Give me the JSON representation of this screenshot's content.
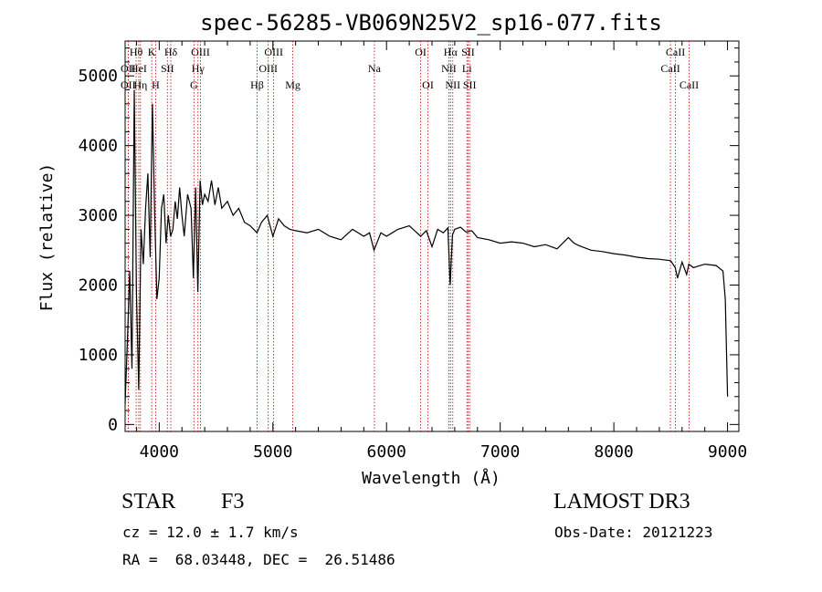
{
  "chart_data": {
    "type": "line",
    "title": "spec-56285-VB069N25V2_sp16-077.fits",
    "xlabel": "Wavelength (Å)",
    "ylabel": "Flux (relative)",
    "xlim": [
      3700,
      9100
    ],
    "ylim": [
      -100,
      5500
    ],
    "xticks": [
      4000,
      5000,
      6000,
      7000,
      8000,
      9000
    ],
    "yticks": [
      0,
      1000,
      2000,
      3000,
      4000,
      5000
    ],
    "series": [
      {
        "name": "flux",
        "x": [
          3700,
          3720,
          3740,
          3760,
          3780,
          3800,
          3820,
          3840,
          3860,
          3880,
          3900,
          3920,
          3940,
          3960,
          3980,
          4000,
          4020,
          4040,
          4060,
          4080,
          4100,
          4120,
          4140,
          4160,
          4180,
          4200,
          4220,
          4250,
          4280,
          4300,
          4320,
          4340,
          4360,
          4380,
          4400,
          4430,
          4460,
          4490,
          4520,
          4550,
          4600,
          4650,
          4700,
          4750,
          4800,
          4860,
          4900,
          4950,
          5000,
          5050,
          5100,
          5150,
          5200,
          5300,
          5400,
          5500,
          5600,
          5700,
          5800,
          5850,
          5890,
          5950,
          6000,
          6100,
          6200,
          6300,
          6350,
          6400,
          6450,
          6500,
          6540,
          6560,
          6580,
          6600,
          6650,
          6700,
          6750,
          6800,
          6900,
          7000,
          7100,
          7200,
          7300,
          7400,
          7500,
          7600,
          7650,
          7700,
          7800,
          7900,
          8000,
          8100,
          8200,
          8300,
          8400,
          8500,
          8540,
          8560,
          8600,
          8640,
          8660,
          8700,
          8800,
          8900,
          8960,
          8980,
          9000
        ],
        "y": [
          300,
          1200,
          2200,
          800,
          4800,
          1900,
          500,
          2800,
          2300,
          3100,
          3600,
          2400,
          4600,
          3000,
          1800,
          2100,
          3100,
          3300,
          2600,
          3000,
          2700,
          2800,
          3200,
          2950,
          3400,
          3000,
          2700,
          3300,
          3100,
          2100,
          3400,
          1900,
          3500,
          3150,
          3300,
          3200,
          3500,
          3150,
          3400,
          3100,
          3200,
          3000,
          3100,
          2900,
          2850,
          2750,
          2900,
          3000,
          2700,
          2950,
          2850,
          2800,
          2780,
          2750,
          2800,
          2700,
          2650,
          2800,
          2700,
          2750,
          2500,
          2750,
          2700,
          2800,
          2850,
          2700,
          2780,
          2550,
          2800,
          2750,
          2820,
          2000,
          2720,
          2800,
          2830,
          2760,
          2780,
          2680,
          2650,
          2600,
          2620,
          2600,
          2550,
          2580,
          2520,
          2680,
          2600,
          2560,
          2500,
          2480,
          2450,
          2430,
          2400,
          2380,
          2370,
          2350,
          2250,
          2100,
          2330,
          2150,
          2300,
          2250,
          2300,
          2280,
          2200,
          1800,
          400
        ]
      }
    ],
    "lines": [
      {
        "name": "OII",
        "wl": 3727,
        "row": 3
      },
      {
        "name": "Hθ",
        "wl": 3797,
        "row": 1
      },
      {
        "name": "OII",
        "wl": 3727,
        "row": 2
      },
      {
        "name": "HeI",
        "wl": 3820,
        "row": 2
      },
      {
        "name": "Hη",
        "wl": 3835,
        "row": 3
      },
      {
        "name": "K",
        "wl": 3934,
        "row": 1
      },
      {
        "name": "H",
        "wl": 3969,
        "row": 3
      },
      {
        "name": "SII",
        "wl": 4072,
        "row": 2
      },
      {
        "name": "Hδ",
        "wl": 4102,
        "row": 1
      },
      {
        "name": "OIII",
        "wl": 4363,
        "row": 1
      },
      {
        "name": "Hγ",
        "wl": 4341,
        "row": 2
      },
      {
        "name": "G",
        "wl": 4305,
        "row": 3
      },
      {
        "name": "Hβ",
        "wl": 4861,
        "row": 3
      },
      {
        "name": "OIII",
        "wl": 5007,
        "row": 1
      },
      {
        "name": "OIII",
        "wl": 4959,
        "row": 2
      },
      {
        "name": "Mg",
        "wl": 5175,
        "row": 3
      },
      {
        "name": "Na",
        "wl": 5893,
        "row": 2
      },
      {
        "name": "OI",
        "wl": 6300,
        "row": 1
      },
      {
        "name": "OI",
        "wl": 6364,
        "row": 3
      },
      {
        "name": "Hα",
        "wl": 6563,
        "row": 1
      },
      {
        "name": "NII",
        "wl": 6548,
        "row": 2
      },
      {
        "name": "NII",
        "wl": 6583,
        "row": 3
      },
      {
        "name": "SII",
        "wl": 6717,
        "row": 1
      },
      {
        "name": "Li",
        "wl": 6707,
        "row": 2
      },
      {
        "name": "SII",
        "wl": 6731,
        "row": 3
      },
      {
        "name": "CaII",
        "wl": 8542,
        "row": 1
      },
      {
        "name": "CaII",
        "wl": 8498,
        "row": 2
      },
      {
        "name": "CaII",
        "wl": 8662,
        "row": 3
      }
    ]
  },
  "info": {
    "class_label": "STAR",
    "subclass": "F3",
    "survey": "LAMOST DR3",
    "cz": "cz = 12.0 ± 1.7 km/s",
    "obs_date": "Obs-Date: 20121223",
    "coords": "RA =  68.03448, DEC =  26.51486"
  }
}
